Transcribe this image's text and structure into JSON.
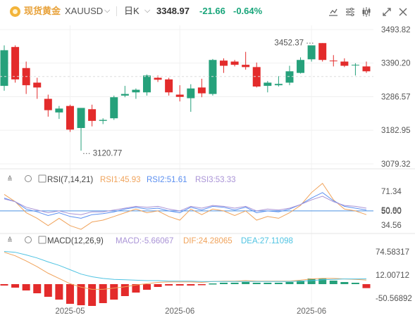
{
  "header": {
    "instrument_name": "现货黄金",
    "symbol": "XAUUSD",
    "symbol_dropdown_icon": "chevron-down-icon",
    "period": "日K",
    "period_dropdown_icon": "chevron-down-icon",
    "last_price": "3348.97",
    "change": "-21.66",
    "change_pct": "-0.64%",
    "toolbar_icons": [
      "chart-drawing-icon",
      "indicator-settings-icon",
      "candle-style-icon",
      "expand-icon",
      "close-icon"
    ]
  },
  "colors": {
    "up": "#26a17b",
    "down": "#e32b2b",
    "rsi1": "#f0a35b",
    "rsi2": "#5b8ff0",
    "rsi3": "#a993d6",
    "macd": "#4fc3e2",
    "dif": "#f0a35b",
    "dea": "#4fc3e2",
    "accent": "#e8a23a"
  },
  "chart_data": [
    {
      "type": "candlestick",
      "y_ticks": [
        "3493.82",
        "3390.20",
        "3286.57",
        "3182.95",
        "3079.32"
      ],
      "ylim": [
        3079.32,
        3493.82
      ],
      "x_tick_labels": [
        "2025-05",
        "2025-06",
        "2025-06"
      ],
      "annotations": {
        "high_label": "3452.37",
        "low_label": "3120.77"
      },
      "candles": [
        {
          "o": 3320,
          "h": 3445,
          "l": 3305,
          "c": 3430
        },
        {
          "o": 3440,
          "h": 3445,
          "l": 3330,
          "c": 3340
        },
        {
          "o": 3375,
          "h": 3395,
          "l": 3295,
          "c": 3322
        },
        {
          "o": 3330,
          "h": 3345,
          "l": 3280,
          "c": 3315
        },
        {
          "o": 3280,
          "h": 3293,
          "l": 3225,
          "c": 3245
        },
        {
          "o": 3238,
          "h": 3258,
          "l": 3218,
          "c": 3250
        },
        {
          "o": 3258,
          "h": 3262,
          "l": 3178,
          "c": 3185
        },
        {
          "o": 3190,
          "h": 3250,
          "l": 3120,
          "c": 3252
        },
        {
          "o": 3248,
          "h": 3262,
          "l": 3195,
          "c": 3212
        },
        {
          "o": 3212,
          "h": 3220,
          "l": 3202,
          "c": 3215
        },
        {
          "o": 3220,
          "h": 3290,
          "l": 3215,
          "c": 3285
        },
        {
          "o": 3290,
          "h": 3320,
          "l": 3285,
          "c": 3295
        },
        {
          "o": 3300,
          "h": 3312,
          "l": 3280,
          "c": 3308
        },
        {
          "o": 3300,
          "h": 3355,
          "l": 3290,
          "c": 3352
        },
        {
          "o": 3345,
          "h": 3352,
          "l": 3332,
          "c": 3339
        },
        {
          "o": 3340,
          "h": 3345,
          "l": 3290,
          "c": 3300
        },
        {
          "o": 3293,
          "h": 3322,
          "l": 3272,
          "c": 3286
        },
        {
          "o": 3282,
          "h": 3325,
          "l": 3240,
          "c": 3312
        },
        {
          "o": 3315,
          "h": 3342,
          "l": 3285,
          "c": 3297
        },
        {
          "o": 3295,
          "h": 3403,
          "l": 3290,
          "c": 3400
        },
        {
          "o": 3398,
          "h": 3405,
          "l": 3360,
          "c": 3382
        },
        {
          "o": 3395,
          "h": 3400,
          "l": 3380,
          "c": 3385
        },
        {
          "o": 3385,
          "h": 3425,
          "l": 3370,
          "c": 3378
        },
        {
          "o": 3378,
          "h": 3392,
          "l": 3315,
          "c": 3318
        },
        {
          "o": 3320,
          "h": 3335,
          "l": 3300,
          "c": 3330
        },
        {
          "o": 3322,
          "h": 3350,
          "l": 3318,
          "c": 3326
        },
        {
          "o": 3330,
          "h": 3382,
          "l": 3322,
          "c": 3365
        },
        {
          "o": 3360,
          "h": 3408,
          "l": 3358,
          "c": 3400
        },
        {
          "o": 3402,
          "h": 3445,
          "l": 3395,
          "c": 3445
        },
        {
          "o": 3452,
          "h": 3452,
          "l": 3395,
          "c": 3400
        },
        {
          "o": 3398,
          "h": 3415,
          "l": 3380,
          "c": 3396
        },
        {
          "o": 3395,
          "h": 3405,
          "l": 3378,
          "c": 3382
        },
        {
          "o": 3385,
          "h": 3390,
          "l": 3352,
          "c": 3385
        },
        {
          "o": 3380,
          "h": 3395,
          "l": 3360,
          "c": 3365
        }
      ]
    },
    {
      "type": "line",
      "indicator": "RSI",
      "label": "RSI(7,14,21)",
      "y_ticks": [
        "71.34",
        "50.80",
        "50.00",
        "34.56"
      ],
      "ylim": [
        27,
        79
      ],
      "series": [
        {
          "name": "RSI1",
          "legend": "RSI1:45.93",
          "values": [
            68,
            60,
            48,
            42,
            34,
            42,
            34,
            30,
            38,
            40,
            44,
            48,
            52,
            48,
            50,
            44,
            40,
            52,
            46,
            52,
            50,
            45,
            50,
            40,
            44,
            42,
            48,
            56,
            70,
            80,
            62,
            52,
            50,
            46
          ]
        },
        {
          "name": "RSI2",
          "legend": "RSI2:51.61",
          "values": [
            64,
            60,
            52,
            49,
            45,
            48,
            44,
            42,
            46,
            47,
            49,
            52,
            54,
            52,
            53,
            50,
            48,
            54,
            51,
            55,
            54,
            51,
            54,
            48,
            50,
            49,
            52,
            57,
            64,
            70,
            61,
            55,
            53,
            51
          ]
        },
        {
          "name": "RSI3",
          "legend": "RSI3:53.33",
          "values": [
            63,
            60,
            54,
            51,
            48,
            50,
            47,
            46,
            49,
            49,
            51,
            53,
            55,
            54,
            55,
            52,
            50,
            55,
            53,
            56,
            55,
            53,
            55,
            50,
            52,
            51,
            53,
            57,
            62,
            66,
            60,
            56,
            55,
            53
          ]
        }
      ]
    },
    {
      "type": "bar+line",
      "indicator": "MACD",
      "label": "MACD(12,26,9)",
      "y_ticks": [
        "74.58317",
        "12.00712",
        "-50.56892"
      ],
      "ylim": [
        -62,
        86
      ],
      "series": [
        {
          "name": "MACD",
          "legend": "MACD:-5.66067",
          "values": [
            -2,
            -5,
            -9,
            -13,
            -18,
            -22,
            -28,
            -30,
            -31,
            -27,
            -22,
            -17,
            -12,
            -8,
            -4,
            -2,
            -2,
            -2,
            -1,
            1,
            2,
            2,
            3,
            2,
            2,
            2,
            3,
            5,
            8,
            8,
            5,
            3,
            2,
            -5.66
          ]
        },
        {
          "name": "DIF",
          "legend": "DIF:24.28065",
          "values": [
            88,
            80,
            68,
            55,
            40,
            28,
            16,
            8,
            3,
            3,
            6,
            9,
            13,
            16,
            19,
            20,
            20,
            20,
            19,
            21,
            22,
            22,
            23,
            22,
            22,
            22,
            22,
            24,
            27,
            28,
            28,
            27,
            26,
            24.28
          ]
        },
        {
          "name": "DEA",
          "legend": "DEA:27.11098",
          "values": [
            90,
            88,
            82,
            75,
            66,
            58,
            48,
            38,
            32,
            28,
            26,
            25,
            24,
            23,
            23,
            22,
            22,
            22,
            21,
            21,
            21,
            21,
            21,
            21,
            21,
            21,
            21,
            22,
            23,
            25,
            26,
            27,
            27,
            27.11
          ]
        }
      ]
    }
  ]
}
